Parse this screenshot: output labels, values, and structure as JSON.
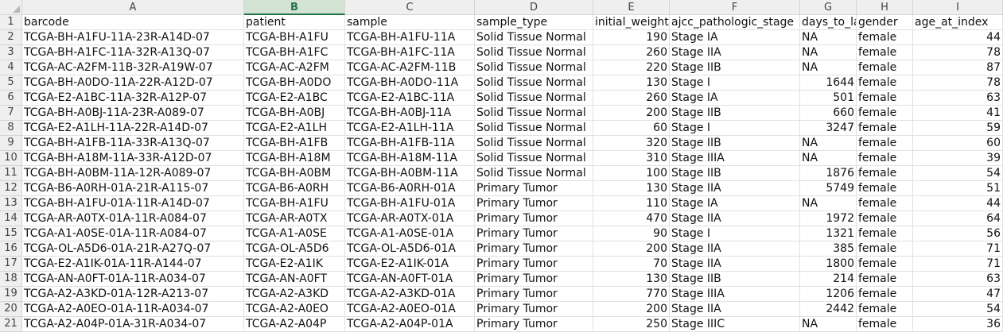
{
  "sheet": {
    "columns": [
      "A",
      "B",
      "C",
      "D",
      "E",
      "F",
      "G",
      "H",
      "I"
    ],
    "selected_column": "B",
    "row_numbers": [
      "1",
      "2",
      "3",
      "4",
      "5",
      "6",
      "7",
      "8",
      "9",
      "10",
      "11",
      "12",
      "13",
      "14",
      "15",
      "16",
      "17",
      "18",
      "19",
      "20",
      "21"
    ],
    "header": [
      "barcode",
      "patient",
      "sample",
      "sample_type",
      "initial_weight",
      "ajcc_pathologic_stage",
      "days_to_last_follow_up",
      "gender",
      "age_at_index"
    ],
    "rows": [
      [
        "TCGA-BH-A1FU-11A-23R-A14D-07",
        "TCGA-BH-A1FU",
        "TCGA-BH-A1FU-11A",
        "Solid Tissue Normal",
        "190",
        "Stage IA",
        "NA",
        "female",
        "44"
      ],
      [
        "TCGA-BH-A1FC-11A-32R-A13Q-07",
        "TCGA-BH-A1FC",
        "TCGA-BH-A1FC-11A",
        "Solid Tissue Normal",
        "260",
        "Stage IIA",
        "NA",
        "female",
        "78"
      ],
      [
        "TCGA-AC-A2FM-11B-32R-A19W-07",
        "TCGA-AC-A2FM",
        "TCGA-AC-A2FM-11B",
        "Solid Tissue Normal",
        "220",
        "Stage IIB",
        "NA",
        "female",
        "87"
      ],
      [
        "TCGA-BH-A0DO-11A-22R-A12D-07",
        "TCGA-BH-A0DO",
        "TCGA-BH-A0DO-11A",
        "Solid Tissue Normal",
        "130",
        "Stage I",
        "1644",
        "female",
        "78"
      ],
      [
        "TCGA-E2-A1BC-11A-32R-A12P-07",
        "TCGA-E2-A1BC",
        "TCGA-E2-A1BC-11A",
        "Solid Tissue Normal",
        "260",
        "Stage IA",
        "501",
        "female",
        "63"
      ],
      [
        "TCGA-BH-A0BJ-11A-23R-A089-07",
        "TCGA-BH-A0BJ",
        "TCGA-BH-A0BJ-11A",
        "Solid Tissue Normal",
        "200",
        "Stage IIB",
        "660",
        "female",
        "41"
      ],
      [
        "TCGA-E2-A1LH-11A-22R-A14D-07",
        "TCGA-E2-A1LH",
        "TCGA-E2-A1LH-11A",
        "Solid Tissue Normal",
        "60",
        "Stage I",
        "3247",
        "female",
        "59"
      ],
      [
        "TCGA-BH-A1FB-11A-33R-A13Q-07",
        "TCGA-BH-A1FB",
        "TCGA-BH-A1FB-11A",
        "Solid Tissue Normal",
        "320",
        "Stage IIB",
        "NA",
        "female",
        "60"
      ],
      [
        "TCGA-BH-A18M-11A-33R-A12D-07",
        "TCGA-BH-A18M",
        "TCGA-BH-A18M-11A",
        "Solid Tissue Normal",
        "310",
        "Stage IIIA",
        "NA",
        "female",
        "39"
      ],
      [
        "TCGA-BH-A0BM-11A-12R-A089-07",
        "TCGA-BH-A0BM",
        "TCGA-BH-A0BM-11A",
        "Solid Tissue Normal",
        "100",
        "Stage IIB",
        "1876",
        "female",
        "54"
      ],
      [
        "TCGA-B6-A0RH-01A-21R-A115-07",
        "TCGA-B6-A0RH",
        "TCGA-B6-A0RH-01A",
        "Primary Tumor",
        "130",
        "Stage IIA",
        "5749",
        "female",
        "51"
      ],
      [
        "TCGA-BH-A1FU-01A-11R-A14D-07",
        "TCGA-BH-A1FU",
        "TCGA-BH-A1FU-01A",
        "Primary Tumor",
        "110",
        "Stage IA",
        "NA",
        "female",
        "44"
      ],
      [
        "TCGA-AR-A0TX-01A-11R-A084-07",
        "TCGA-AR-A0TX",
        "TCGA-AR-A0TX-01A",
        "Primary Tumor",
        "470",
        "Stage IIA",
        "1972",
        "female",
        "64"
      ],
      [
        "TCGA-A1-A0SE-01A-11R-A084-07",
        "TCGA-A1-A0SE",
        "TCGA-A1-A0SE-01A",
        "Primary Tumor",
        "90",
        "Stage I",
        "1321",
        "female",
        "56"
      ],
      [
        "TCGA-OL-A5D6-01A-21R-A27Q-07",
        "TCGA-OL-A5D6",
        "TCGA-OL-A5D6-01A",
        "Primary Tumor",
        "200",
        "Stage IIA",
        "385",
        "female",
        "71"
      ],
      [
        "TCGA-E2-A1IK-01A-11R-A144-07",
        "TCGA-E2-A1IK",
        "TCGA-E2-A1IK-01A",
        "Primary Tumor",
        "70",
        "Stage IIA",
        "1800",
        "female",
        "71"
      ],
      [
        "TCGA-AN-A0FT-01A-11R-A034-07",
        "TCGA-AN-A0FT",
        "TCGA-AN-A0FT-01A",
        "Primary Tumor",
        "130",
        "Stage IIB",
        "214",
        "female",
        "63"
      ],
      [
        "TCGA-A2-A3KD-01A-12R-A213-07",
        "TCGA-A2-A3KD",
        "TCGA-A2-A3KD-01A",
        "Primary Tumor",
        "770",
        "Stage IIIA",
        "1206",
        "female",
        "47"
      ],
      [
        "TCGA-A2-A0EO-01A-11R-A034-07",
        "TCGA-A2-A0EO",
        "TCGA-A2-A0EO-01A",
        "Primary Tumor",
        "200",
        "Stage IIA",
        "2442",
        "female",
        "54"
      ],
      [
        "TCGA-A2-A04P-01A-31R-A034-07",
        "TCGA-A2-A04P",
        "TCGA-A2-A04P-01A",
        "Primary Tumor",
        "250",
        "Stage IIIC",
        "NA",
        "female",
        "36"
      ]
    ],
    "numeric_columns": [
      4,
      8
    ],
    "colors": {
      "selected_header_bg": "#d3e3d3",
      "selected_header_text": "#217346",
      "header_bg": "#efefef",
      "gridline": "#e1e1e1"
    }
  }
}
